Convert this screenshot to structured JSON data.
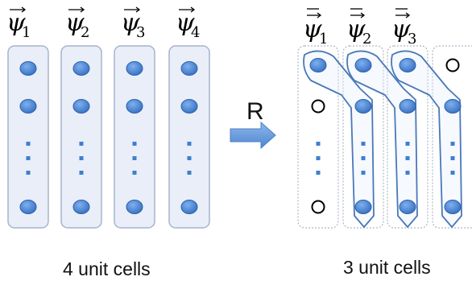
{
  "left_group": {
    "labels": [
      {
        "symbol": "ψ",
        "index": "1"
      },
      {
        "symbol": "ψ",
        "index": "2"
      },
      {
        "symbol": "ψ",
        "index": "3"
      },
      {
        "symbol": "ψ",
        "index": "4"
      }
    ],
    "caption": "4 unit cells"
  },
  "operator": {
    "label": "R"
  },
  "right_group": {
    "labels": [
      {
        "symbol": "ψ",
        "index": "1"
      },
      {
        "symbol": "ψ",
        "index": "2"
      },
      {
        "symbol": "ψ",
        "index": "3"
      }
    ],
    "caption": "3 unit cells"
  },
  "colors": {
    "cell_fill": "#e9eef8",
    "cell_stroke": "#a6b4cc",
    "node_fill": "#4a86d8",
    "node_stroke": "#2f62a8",
    "group_stroke": "#4a78b8",
    "arrow_fill": "#5b93d8",
    "empty_node_stroke": "#000000"
  }
}
